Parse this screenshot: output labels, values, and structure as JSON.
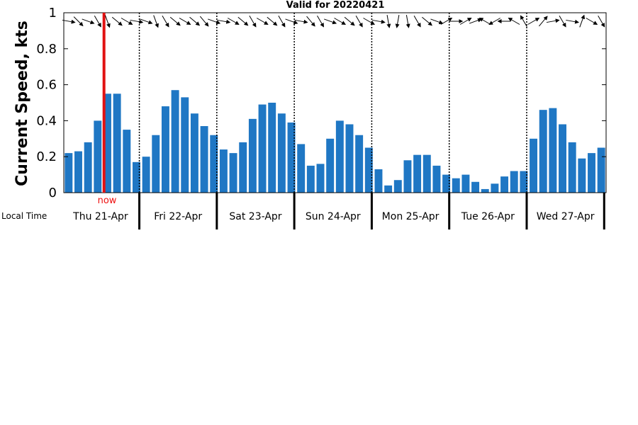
{
  "chart_data": {
    "type": "bar",
    "title": "Valid for 20220421",
    "ylabel": "Current Speed, kts",
    "ylim": [
      0,
      1
    ],
    "yticks": [
      "0",
      "0.2",
      "0.4",
      "0.6",
      "0.8",
      "1"
    ],
    "local_time_label": "Local Time",
    "now_label": "now",
    "now_index": 4.5,
    "days": [
      "Thu 21-Apr",
      "Fri 22-Apr",
      "Sat 23-Apr",
      "Sun 24-Apr",
      "Mon 25-Apr",
      "Tue 26-Apr",
      "Wed 27-Apr"
    ],
    "bars_per_day": 8,
    "values": [
      0.22,
      0.23,
      0.28,
      0.4,
      0.55,
      0.55,
      0.35,
      0.17,
      0.2,
      0.32,
      0.48,
      0.57,
      0.53,
      0.44,
      0.37,
      0.32,
      0.24,
      0.22,
      0.28,
      0.41,
      0.49,
      0.5,
      0.44,
      0.39,
      0.27,
      0.15,
      0.16,
      0.3,
      0.4,
      0.38,
      0.32,
      0.25,
      0.13,
      0.04,
      0.07,
      0.18,
      0.21,
      0.21,
      0.15,
      0.1,
      0.08,
      0.1,
      0.06,
      0.02,
      0.05,
      0.09,
      0.12,
      0.12,
      0.3,
      0.46,
      0.47,
      0.38,
      0.28,
      0.19,
      0.22,
      0.25
    ],
    "direction_deg": [
      100,
      135,
      110,
      150,
      160,
      130,
      120,
      100,
      110,
      160,
      150,
      130,
      120,
      130,
      140,
      110,
      100,
      120,
      130,
      150,
      120,
      130,
      150,
      110,
      100,
      140,
      150,
      110,
      120,
      130,
      150,
      120,
      100,
      170,
      190,
      170,
      150,
      130,
      110,
      60,
      90,
      60,
      70,
      300,
      240,
      270,
      300,
      330,
      60,
      40,
      80,
      150,
      100,
      20,
      120,
      150
    ],
    "bar_color": "#1f77c4",
    "now_color": "#e11111",
    "grid": false
  }
}
